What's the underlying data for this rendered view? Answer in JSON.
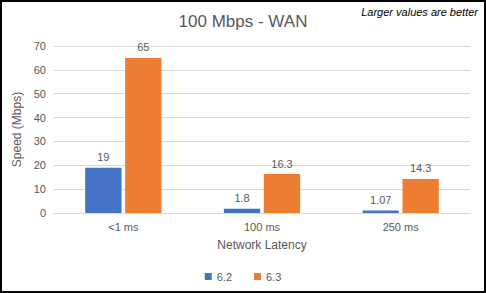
{
  "chart_data": {
    "type": "bar",
    "title": "100 Mbps - WAN",
    "annotations": [
      "Larger values are better"
    ],
    "x_label": "Network Latency",
    "y_label": "Speed (Mbps)",
    "categories": [
      "<1 ms",
      "100 ms",
      "250 ms"
    ],
    "series": [
      {
        "name": "6.2",
        "color": "#4472c4",
        "values": [
          19,
          1.8,
          1.07
        ]
      },
      {
        "name": "6.3",
        "color": "#ed7d31",
        "values": [
          65,
          16.3,
          14.3
        ]
      }
    ],
    "ylim": [
      0,
      70
    ],
    "yticks": [
      0,
      10,
      20,
      30,
      40,
      50,
      60,
      70
    ],
    "grid": true,
    "legend": "bottom",
    "data_labels": true
  }
}
